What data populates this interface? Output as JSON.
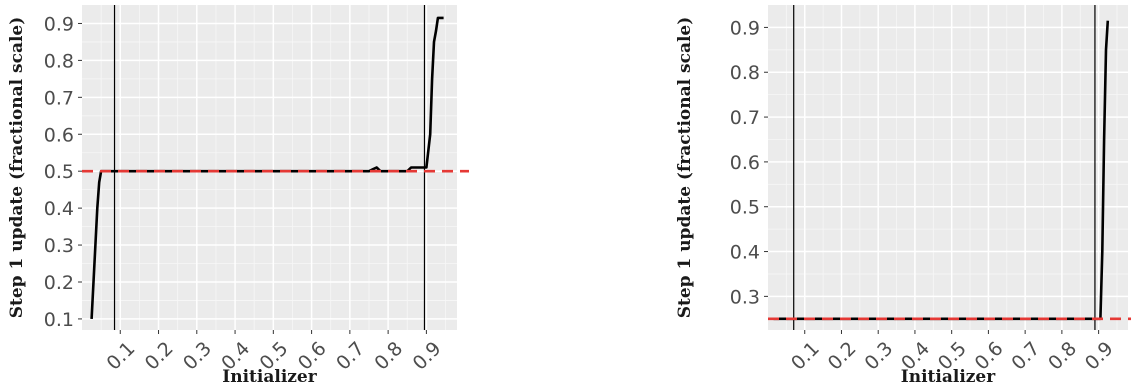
{
  "chart_data": [
    {
      "type": "line",
      "xlabel": "Initializer",
      "ylabel": "Step 1 update (fractional scale)",
      "xlim": [
        0.0,
        0.98
      ],
      "ylim": [
        0.07,
        0.95
      ],
      "x_ticks": [
        0.1,
        0.2,
        0.3,
        0.4,
        0.5,
        0.6,
        0.7,
        0.8,
        0.9
      ],
      "x_tick_labels": [
        "0.1",
        "0.2",
        "0.3",
        "0.4",
        "0.5",
        "0.6",
        "0.7",
        "0.8",
        "0.9"
      ],
      "y_ticks": [
        0.1,
        0.2,
        0.3,
        0.4,
        0.5,
        0.6,
        0.7,
        0.8,
        0.9
      ],
      "y_tick_labels": [
        "0.1",
        "0.2",
        "0.3",
        "0.4",
        "0.5",
        "0.6",
        "0.7",
        "0.8",
        "0.9"
      ],
      "grid": true,
      "vlines": [
        0.085,
        0.895
      ],
      "hline": 0.5,
      "series": [
        {
          "x": [
            0.025,
            0.03,
            0.035,
            0.04,
            0.045,
            0.05,
            0.1,
            0.2,
            0.3,
            0.4,
            0.5,
            0.6,
            0.7,
            0.75,
            0.76,
            0.77,
            0.78,
            0.8,
            0.85,
            0.86,
            0.9,
            0.91,
            0.915,
            0.92,
            0.925,
            0.93,
            0.945
          ],
          "y": [
            0.1,
            0.2,
            0.3,
            0.4,
            0.47,
            0.5,
            0.5,
            0.5,
            0.5,
            0.5,
            0.5,
            0.5,
            0.5,
            0.5,
            0.505,
            0.51,
            0.5,
            0.5,
            0.5,
            0.51,
            0.51,
            0.6,
            0.75,
            0.85,
            0.88,
            0.915,
            0.915
          ]
        }
      ]
    },
    {
      "type": "line",
      "xlabel": "Initializer",
      "ylabel": "Step 1 update (fractional scale)",
      "xlim": [
        0.0,
        0.98
      ],
      "ylim": [
        0.225,
        0.95
      ],
      "x_ticks": [
        0.1,
        0.2,
        0.3,
        0.4,
        0.5,
        0.6,
        0.7,
        0.8,
        0.9
      ],
      "x_tick_labels": [
        "0.1",
        "0.2",
        "0.3",
        "0.4",
        "0.5",
        "0.6",
        "0.7",
        "0.8",
        "0.9"
      ],
      "y_ticks": [
        0.3,
        0.4,
        0.5,
        0.6,
        0.7,
        0.8,
        0.9
      ],
      "y_tick_labels": [
        "0.3",
        "0.4",
        "0.5",
        "0.6",
        "0.7",
        "0.8",
        "0.9"
      ],
      "grid": true,
      "vlines": [
        0.07,
        0.89
      ],
      "hline": 0.25,
      "series": [
        {
          "x": [
            0.015,
            0.1,
            0.3,
            0.5,
            0.7,
            0.9,
            0.905,
            0.91,
            0.915,
            0.92,
            0.925
          ],
          "y": [
            0.25,
            0.25,
            0.25,
            0.25,
            0.25,
            0.25,
            0.25,
            0.4,
            0.65,
            0.85,
            0.915
          ]
        }
      ]
    }
  ]
}
